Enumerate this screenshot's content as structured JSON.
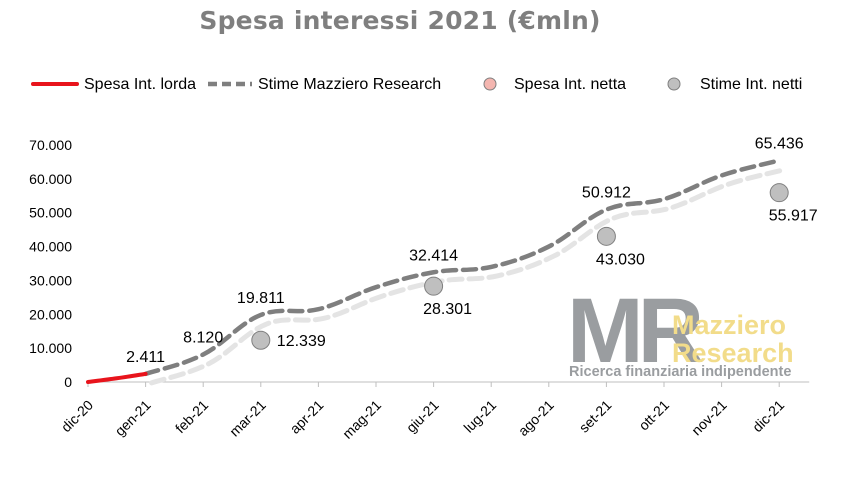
{
  "chart_data": {
    "type": "line",
    "title": "Spesa interessi 2021 (€mln)",
    "categories": [
      "dic-20",
      "gen-21",
      "feb-21",
      "mar-21",
      "apr-21",
      "mag-21",
      "giu-21",
      "lug-21",
      "ago-21",
      "set-21",
      "ott-21",
      "nov-21",
      "dic-21"
    ],
    "ylim": [
      0,
      70000
    ],
    "yticks": [
      0,
      10000,
      20000,
      30000,
      40000,
      50000,
      60000,
      70000
    ],
    "ytick_labels": [
      "0",
      "10.000",
      "20.000",
      "30.000",
      "40.000",
      "50.000",
      "60.000",
      "70.000"
    ],
    "grid": false,
    "legend_position": "top",
    "series": [
      {
        "name": "Spesa Int. lorda",
        "kind": "line",
        "color": "#e8141c",
        "x": [
          0,
          0.5,
          1
        ],
        "values": [
          0,
          1100,
          2411
        ]
      },
      {
        "name": "Stime Mazziero Research",
        "kind": "dashed-line",
        "color": "#7f7f7f",
        "x": [
          1,
          2,
          3,
          4,
          5,
          6,
          7,
          8,
          9,
          10,
          11,
          12
        ],
        "values": [
          2411,
          8120,
          19811,
          21500,
          28000,
          32414,
          34000,
          40000,
          50912,
          54000,
          61000,
          65436
        ]
      },
      {
        "name": "Spesa Int. netta",
        "kind": "marker",
        "color": "#f4b6b0",
        "x": [],
        "values": []
      },
      {
        "name": "Stime Int. netti",
        "kind": "marker",
        "color": "#bfbfbf",
        "x": [
          3,
          6,
          9,
          12
        ],
        "values": [
          12339,
          28301,
          43030,
          55917
        ]
      }
    ],
    "data_labels": [
      {
        "text": "2.411",
        "x": 1,
        "value": 2411,
        "pos": "above"
      },
      {
        "text": "8.120",
        "x": 2,
        "value": 8120,
        "pos": "above"
      },
      {
        "text": "19.811",
        "x": 3,
        "value": 19811,
        "pos": "above"
      },
      {
        "text": "12.339",
        "x": 3,
        "value": 12339,
        "pos": "right"
      },
      {
        "text": "32.414",
        "x": 6,
        "value": 32414,
        "pos": "above"
      },
      {
        "text": "28.301",
        "x": 6,
        "value": 28301,
        "pos": "below"
      },
      {
        "text": "50.912",
        "x": 9,
        "value": 50912,
        "pos": "above"
      },
      {
        "text": "43.030",
        "x": 9,
        "value": 43030,
        "pos": "below"
      },
      {
        "text": "65.436",
        "x": 12,
        "value": 65436,
        "pos": "above"
      },
      {
        "text": "55.917",
        "x": 12,
        "value": 55917,
        "pos": "below"
      }
    ]
  },
  "logo": {
    "letters": "MR",
    "line1": "Mazziero",
    "line2": "Research",
    "tagline": "Ricerca finanziaria indipendente",
    "colors": {
      "letters": "#9a9da0",
      "name": "#f2dc8a",
      "tagline": "#9a9da0"
    }
  }
}
